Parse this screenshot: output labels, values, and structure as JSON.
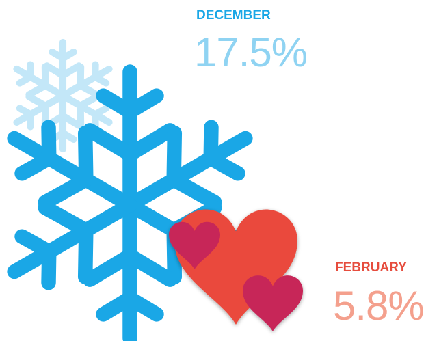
{
  "items": [
    {
      "month": "DECEMBER",
      "value": "17.5%"
    },
    {
      "month": "FEBRUARY",
      "value": "5.8%"
    }
  ]
}
